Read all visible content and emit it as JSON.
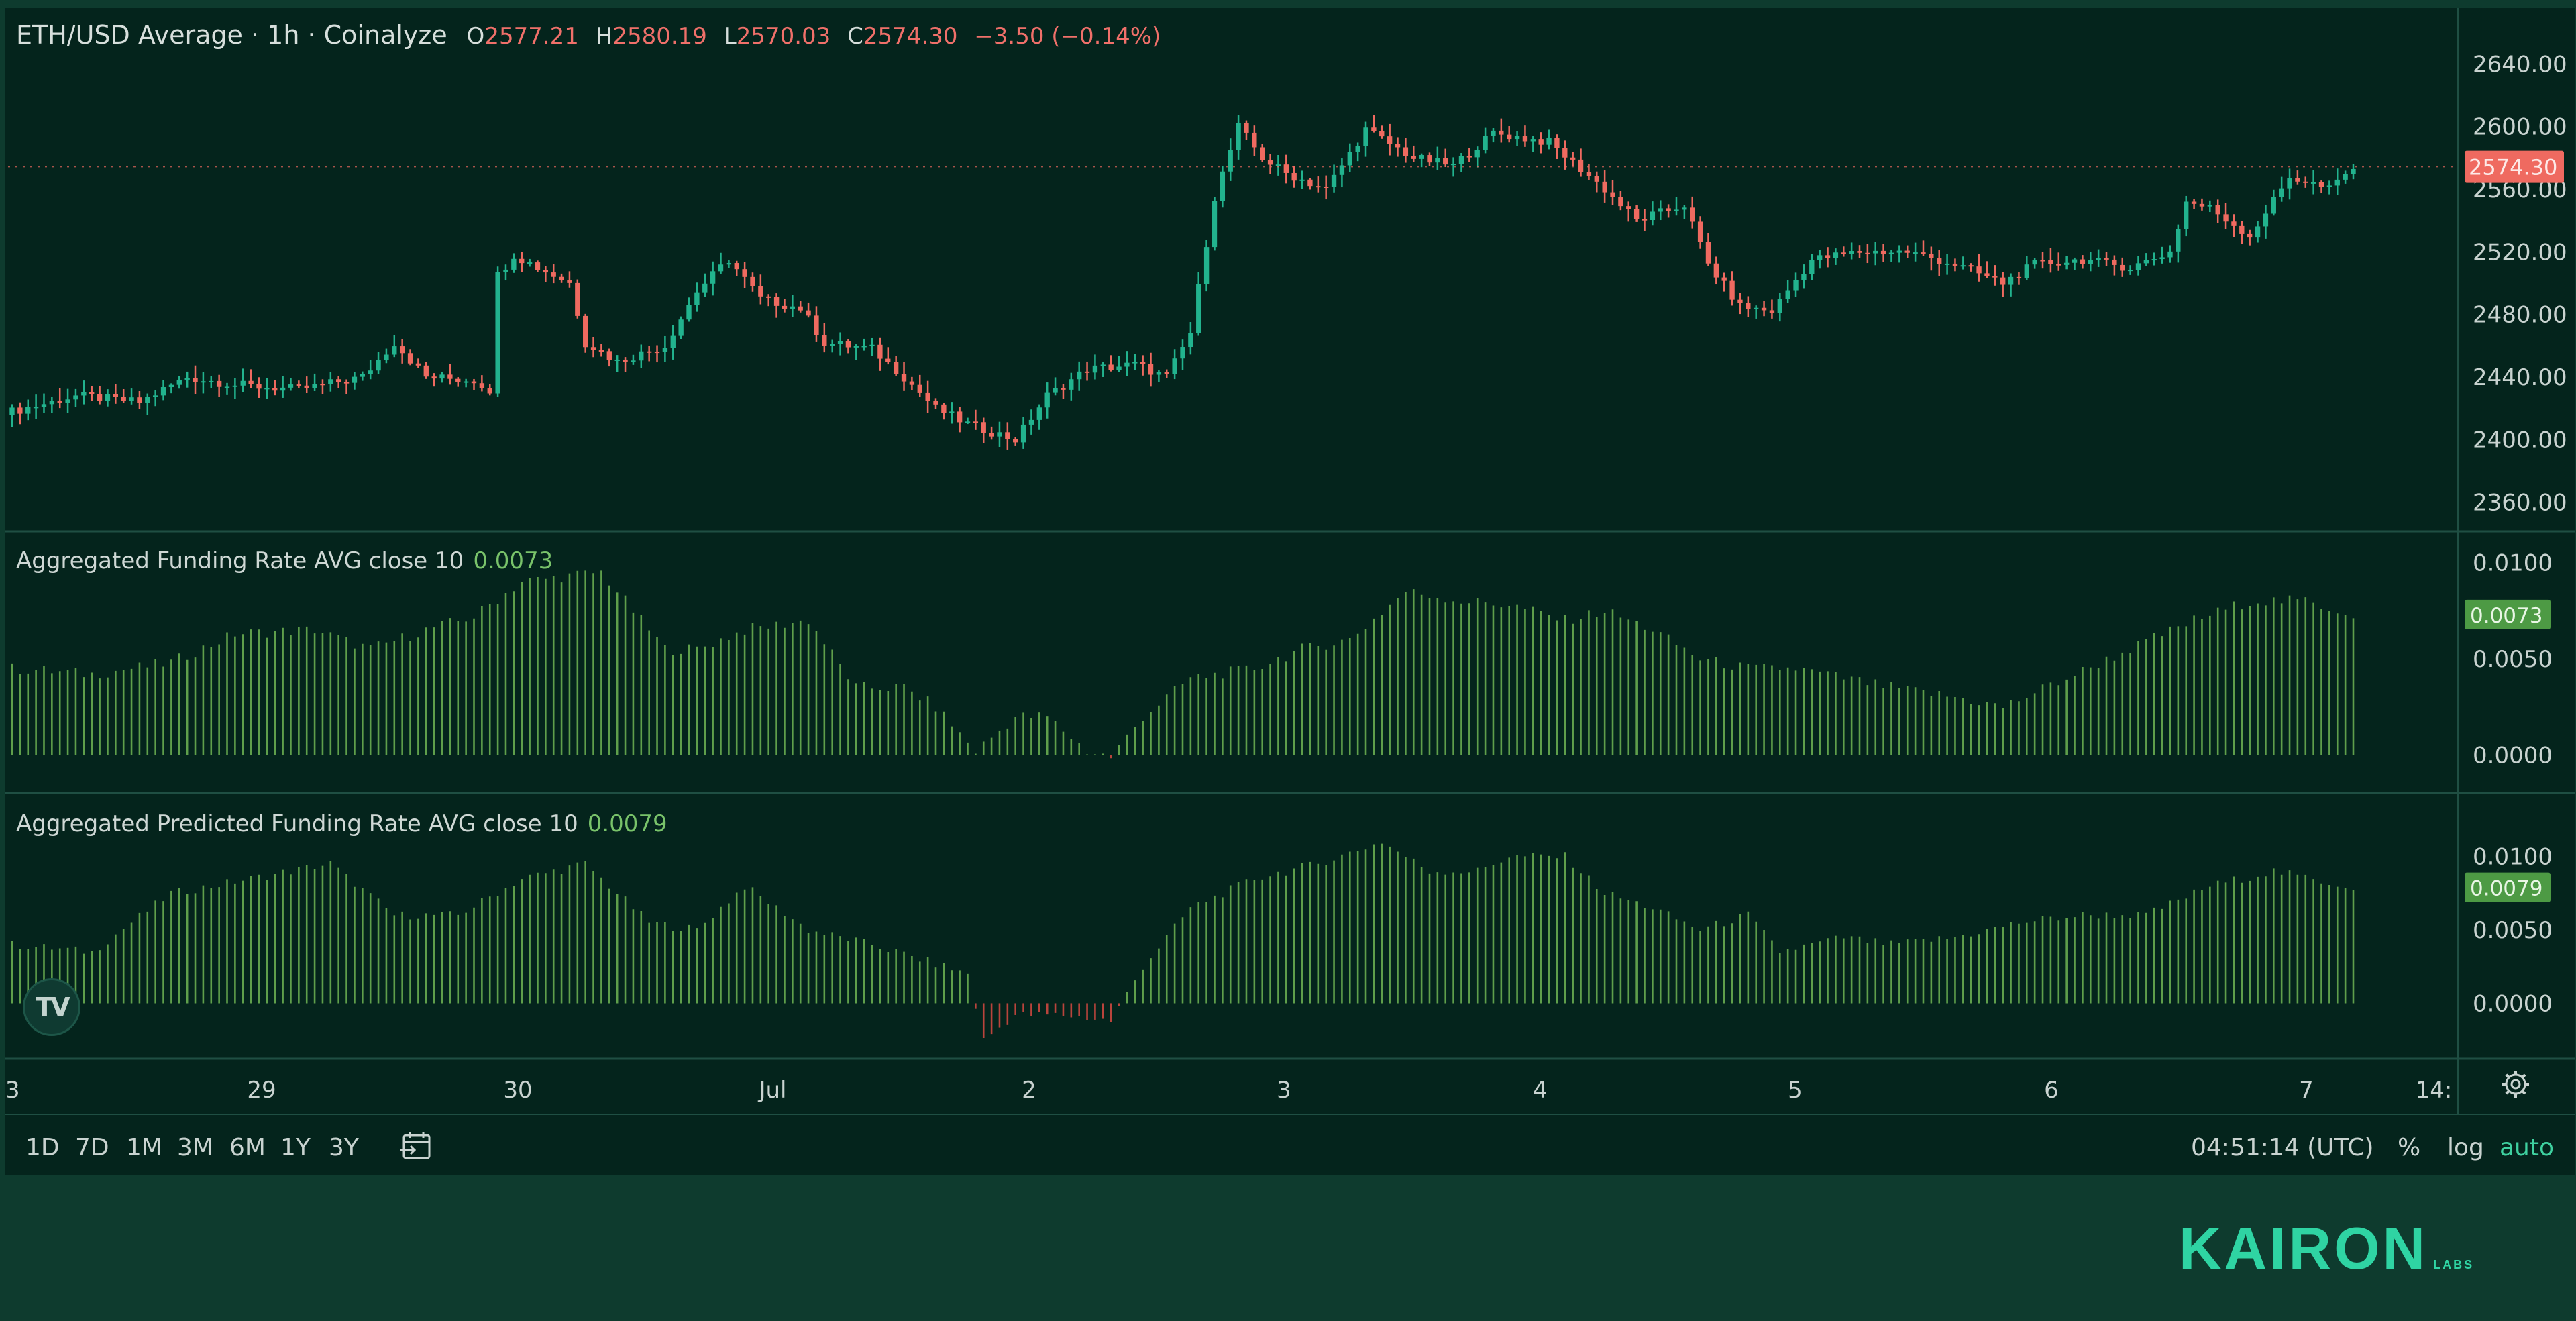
{
  "header": {
    "symbol": "ETH/USD Average · 1h · Coinalyze",
    "open_label": "O",
    "open_value": "2577.21",
    "high_label": "H",
    "high_value": "2580.19",
    "low_label": "L",
    "low_value": "2570.03",
    "close_label": "C",
    "close_value": "2574.30",
    "change": "−3.50 (−0.14%)"
  },
  "colors": {
    "background": "#04241c",
    "page": "#0e3b2e",
    "up": "#22b38e",
    "down": "#ef6a60",
    "indicator_positive": "#5f9f4b",
    "indicator_negative": "#b9443c",
    "brand": "#2fd4a3"
  },
  "panes": {
    "price": {
      "axis_ticks": [
        "2640.00",
        "2600.00",
        "2560.00",
        "2520.00",
        "2480.00",
        "2440.00",
        "2400.00",
        "2360.00"
      ],
      "last_price_tag": "2574.30"
    },
    "funding": {
      "title": "Aggregated Funding Rate AVG close 10",
      "value": "0.0073",
      "axis_ticks": [
        "0.0100",
        "0.0050",
        "0.0000"
      ],
      "tag": "0.0073"
    },
    "predicted": {
      "title": "Aggregated Predicted Funding Rate AVG close 10",
      "value": "0.0079",
      "axis_ticks": [
        "0.0100",
        "0.0050",
        "0.0000"
      ],
      "tag": "0.0079"
    }
  },
  "time_axis": {
    "labels": [
      "3",
      "29",
      "30",
      "Jul",
      "2",
      "3",
      "4",
      "5",
      "6",
      "7",
      "14:"
    ]
  },
  "bottom_bar": {
    "ranges": [
      "1D",
      "7D",
      "1M",
      "3M",
      "6M",
      "1Y",
      "3Y"
    ],
    "calendar_icon": "calendar-icon",
    "clock": "04:51:14 (UTC)",
    "percent_label": "%",
    "log_label": "log",
    "auto_label": "auto",
    "settings_icon": "gear-icon"
  },
  "logo": {
    "tradingview": "TV"
  },
  "brand": {
    "main": "KAIRON",
    "sub": "LABS"
  },
  "chart_data": [
    {
      "type": "candlestick",
      "title": "ETH/USD Average · 1h · Coinalyze",
      "x_labels": [
        "3",
        "29",
        "30",
        "Jul",
        "2",
        "3",
        "4",
        "5",
        "6",
        "7"
      ],
      "ylim": [
        2350,
        2650
      ],
      "anchors_close": [
        [
          0,
          2418
        ],
        [
          8,
          2428
        ],
        [
          16,
          2424
        ],
        [
          22,
          2440
        ],
        [
          28,
          2435
        ],
        [
          36,
          2432
        ],
        [
          44,
          2440
        ],
        [
          48,
          2462
        ],
        [
          52,
          2440
        ],
        [
          58,
          2438
        ],
        [
          60,
          2432
        ],
        [
          61,
          2505
        ],
        [
          63,
          2518
        ],
        [
          66,
          2510
        ],
        [
          70,
          2500
        ],
        [
          72,
          2462
        ],
        [
          76,
          2450
        ],
        [
          82,
          2460
        ],
        [
          86,
          2495
        ],
        [
          90,
          2515
        ],
        [
          94,
          2490
        ],
        [
          99,
          2484
        ],
        [
          102,
          2462
        ],
        [
          108,
          2458
        ],
        [
          112,
          2440
        ],
        [
          116,
          2420
        ],
        [
          120,
          2410
        ],
        [
          126,
          2400
        ],
        [
          130,
          2428
        ],
        [
          135,
          2445
        ],
        [
          141,
          2448
        ],
        [
          145,
          2440
        ],
        [
          148,
          2468
        ],
        [
          151,
          2555
        ],
        [
          154,
          2600
        ],
        [
          157,
          2580
        ],
        [
          160,
          2570
        ],
        [
          165,
          2560
        ],
        [
          170,
          2598
        ],
        [
          176,
          2580
        ],
        [
          181,
          2575
        ],
        [
          186,
          2596
        ],
        [
          193,
          2590
        ],
        [
          200,
          2560
        ],
        [
          204,
          2540
        ],
        [
          210,
          2550
        ],
        [
          213,
          2512
        ],
        [
          217,
          2485
        ],
        [
          221,
          2482
        ],
        [
          226,
          2515
        ],
        [
          232,
          2520
        ],
        [
          238,
          2520
        ],
        [
          244,
          2512
        ],
        [
          250,
          2500
        ],
        [
          254,
          2512
        ],
        [
          260,
          2515
        ],
        [
          266,
          2510
        ],
        [
          271,
          2520
        ],
        [
          273,
          2552
        ],
        [
          276,
          2548
        ],
        [
          281,
          2530
        ],
        [
          286,
          2568
        ],
        [
          291,
          2560
        ],
        [
          294,
          2574
        ]
      ]
    },
    {
      "type": "bar",
      "title": "Aggregated Funding Rate AVG close 10",
      "last_value": 0.0073,
      "ylim": [
        -0.0005,
        0.0105
      ],
      "anchors": [
        [
          0,
          0.0045
        ],
        [
          10,
          0.0042
        ],
        [
          20,
          0.0048
        ],
        [
          28,
          0.0063
        ],
        [
          38,
          0.0065
        ],
        [
          45,
          0.0055
        ],
        [
          52,
          0.0065
        ],
        [
          58,
          0.0072
        ],
        [
          64,
          0.009
        ],
        [
          74,
          0.0095
        ],
        [
          82,
          0.0055
        ],
        [
          86,
          0.0055
        ],
        [
          92,
          0.0065
        ],
        [
          100,
          0.007
        ],
        [
          106,
          0.0035
        ],
        [
          112,
          0.0035
        ],
        [
          116,
          0.0025
        ],
        [
          121,
          0.0002
        ],
        [
          126,
          0.002
        ],
        [
          130,
          0.002
        ],
        [
          135,
          0.0002
        ],
        [
          138,
          -0.0001
        ],
        [
          142,
          0.002
        ],
        [
          148,
          0.004
        ],
        [
          156,
          0.0045
        ],
        [
          162,
          0.0055
        ],
        [
          168,
          0.006
        ],
        [
          175,
          0.0085
        ],
        [
          182,
          0.008
        ],
        [
          188,
          0.0078
        ],
        [
          195,
          0.007
        ],
        [
          200,
          0.0075
        ],
        [
          206,
          0.0065
        ],
        [
          212,
          0.005
        ],
        [
          218,
          0.0045
        ],
        [
          224,
          0.0045
        ],
        [
          230,
          0.004
        ],
        [
          236,
          0.0035
        ],
        [
          244,
          0.003
        ],
        [
          250,
          0.0025
        ],
        [
          258,
          0.004
        ],
        [
          266,
          0.0055
        ],
        [
          274,
          0.007
        ],
        [
          281,
          0.008
        ],
        [
          288,
          0.008
        ],
        [
          294,
          0.0073
        ]
      ]
    },
    {
      "type": "bar",
      "title": "Aggregated Predicted Funding Rate AVG close 10",
      "last_value": 0.0079,
      "ylim": [
        -0.0035,
        0.0125
      ],
      "anchors": [
        [
          0,
          0.004
        ],
        [
          10,
          0.0035
        ],
        [
          20,
          0.0075
        ],
        [
          30,
          0.0085
        ],
        [
          40,
          0.0095
        ],
        [
          48,
          0.006
        ],
        [
          56,
          0.006
        ],
        [
          64,
          0.0085
        ],
        [
          72,
          0.0095
        ],
        [
          80,
          0.0055
        ],
        [
          86,
          0.005
        ],
        [
          92,
          0.008
        ],
        [
          100,
          0.005
        ],
        [
          108,
          0.004
        ],
        [
          114,
          0.003
        ],
        [
          120,
          0.002
        ],
        [
          122,
          -0.0025
        ],
        [
          126,
          -0.0008
        ],
        [
          132,
          -0.0008
        ],
        [
          138,
          -0.0012
        ],
        [
          142,
          0.0025
        ],
        [
          148,
          0.0065
        ],
        [
          156,
          0.0085
        ],
        [
          164,
          0.0095
        ],
        [
          172,
          0.011
        ],
        [
          178,
          0.009
        ],
        [
          184,
          0.009
        ],
        [
          188,
          0.01
        ],
        [
          195,
          0.01
        ],
        [
          200,
          0.0075
        ],
        [
          206,
          0.0065
        ],
        [
          212,
          0.005
        ],
        [
          218,
          0.006
        ],
        [
          222,
          0.0035
        ],
        [
          230,
          0.0045
        ],
        [
          236,
          0.004
        ],
        [
          244,
          0.0045
        ],
        [
          252,
          0.0055
        ],
        [
          260,
          0.006
        ],
        [
          268,
          0.006
        ],
        [
          276,
          0.008
        ],
        [
          284,
          0.009
        ],
        [
          294,
          0.0079
        ]
      ]
    }
  ]
}
